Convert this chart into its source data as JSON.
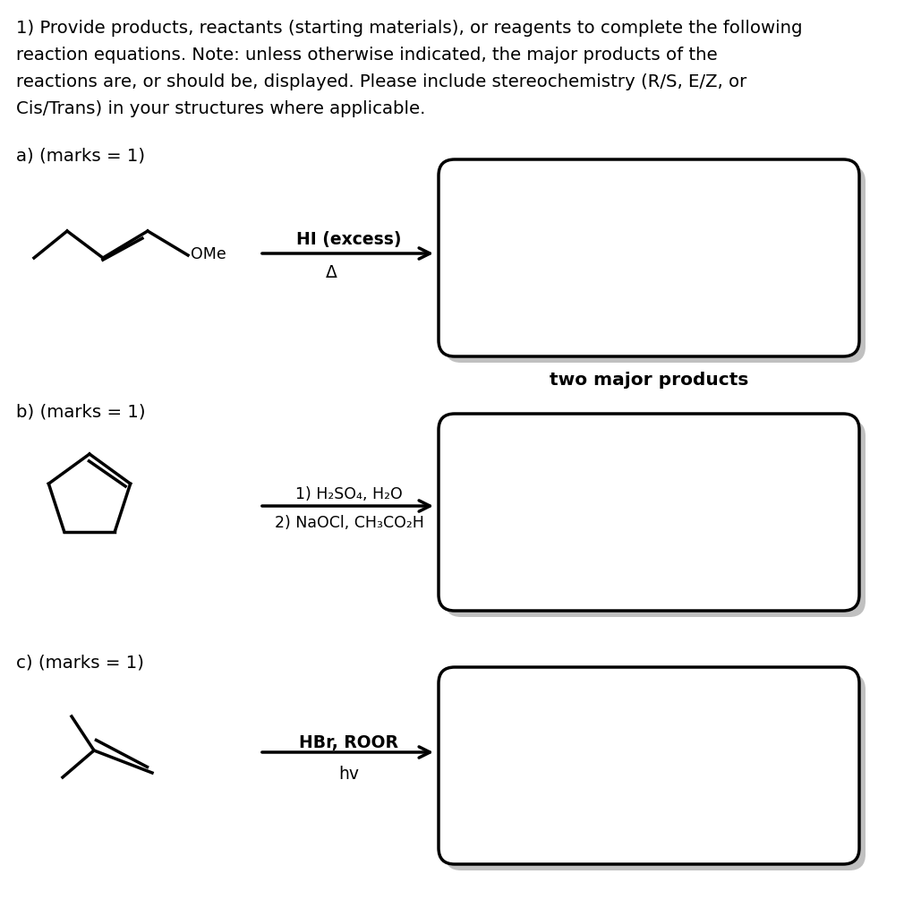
{
  "bg_color": "#ffffff",
  "title_text_lines": [
    "1) Provide products, reactants (starting materials), or reagents to complete the following",
    "reaction equations. Note: unless otherwise indicated, the major products of the",
    "reactions are, or should be, displayed. Please include stereochemistry (R/S, E/Z, or",
    "Cis/Trans) in your structures where applicable."
  ],
  "section_a_label": "a) (marks = 1)",
  "section_b_label": "b) (marks = 1)",
  "section_c_label": "c) (marks = 1)",
  "reagent_a_above": "HI (excess)",
  "reagent_a_below": "Δ",
  "reagent_b_line1": "1) H₂SO₄, H₂O",
  "reagent_b_line2": "2) NaOCl, CH₃CO₂H",
  "reagent_c_above": "HBr, ROOR",
  "reagent_c_below": "hv",
  "caption_a": "two major products",
  "text_color": "#000000",
  "shadow_color": "#c0c0c0",
  "box_edge_color": "#000000",
  "box_face_color": "#ffffff"
}
